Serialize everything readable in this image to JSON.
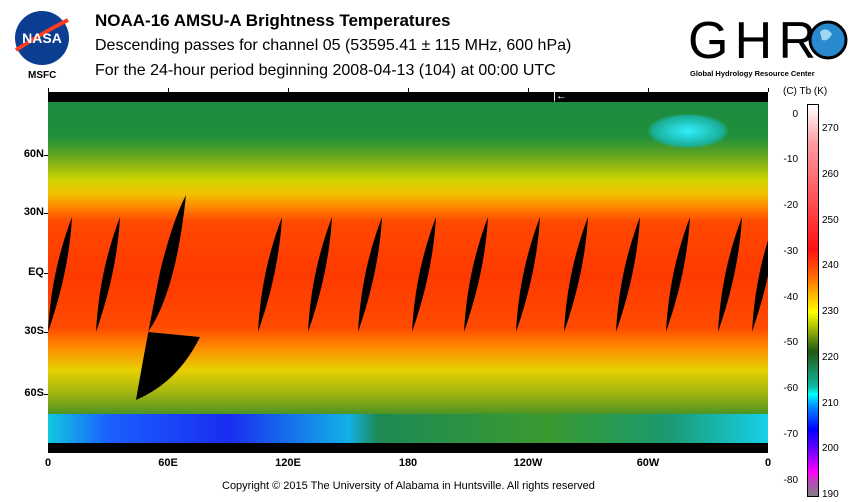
{
  "header": {
    "title": "NOAA-16 AMSU-A Brightness Temperatures",
    "subtitle": "Descending passes for channel 05 (53595.41 ± 115 MHz, 600 hPa)",
    "period": "For the 24-hour period beginning 2008-04-13 (104) at 00:00 UTC"
  },
  "logos": {
    "nasa": "NASA",
    "msfc": "MSFC",
    "ghrc": "GHRC",
    "ghrc_sub": "Global Hydrology Resource Center"
  },
  "map": {
    "lat_labels": [
      "60N",
      "30N",
      "EQ",
      "30S",
      "60S"
    ],
    "lon_labels": [
      "0",
      "60E",
      "120E",
      "180",
      "120W",
      "60W",
      "0"
    ],
    "dateline_marker": "|←"
  },
  "colorbar": {
    "header": "(C)  Tb  (K)",
    "celsius": [
      "0",
      "-10",
      "-20",
      "-30",
      "-40",
      "-50",
      "-60",
      "-70",
      "-80"
    ],
    "kelvin": [
      "270",
      "260",
      "250",
      "240",
      "230",
      "220",
      "210",
      "200",
      "190"
    ]
  },
  "footer": {
    "copyright": "Copyright © 2015 The University of Alabama in Huntsville.  All rights reserved"
  }
}
